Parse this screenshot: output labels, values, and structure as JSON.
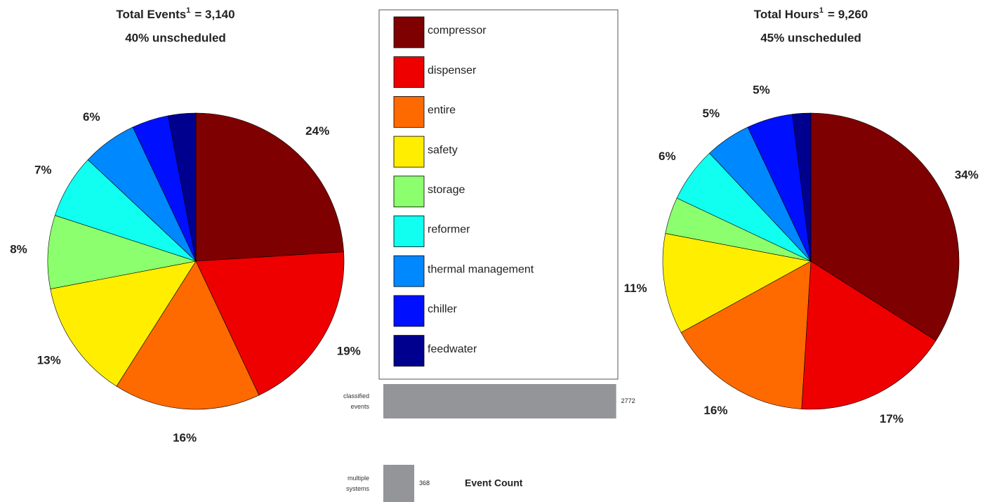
{
  "chart_data": [
    {
      "type": "pie",
      "title": "Total Events",
      "title_footnote": "1",
      "total": "= 3,140",
      "subtitle": "40% unscheduled",
      "categories": [
        "compressor",
        "dispenser",
        "entire",
        "safety",
        "storage",
        "reformer",
        "thermal management",
        "chiller",
        "feedwater"
      ],
      "colors": [
        "#7f0000",
        "#ee0000",
        "#ff6a00",
        "#ffee00",
        "#8cff6e",
        "#10fff0",
        "#0088ff",
        "#0010ff",
        "#00008f"
      ],
      "values": [
        24,
        19,
        16,
        13,
        8,
        7,
        6,
        4,
        3
      ],
      "value_labels": [
        "24%",
        "19%",
        "16%",
        "13%",
        "8%",
        "7%",
        "6%",
        null,
        null
      ],
      "legend": true
    },
    {
      "type": "pie",
      "title": "Total Hours",
      "title_footnote": "1",
      "total": "= 9,260",
      "subtitle": "45% unscheduled",
      "categories": [
        "compressor",
        "dispenser",
        "entire",
        "safety",
        "storage",
        "reformer",
        "thermal management",
        "chiller",
        "feedwater"
      ],
      "colors": [
        "#7f0000",
        "#ee0000",
        "#ff6a00",
        "#ffee00",
        "#8cff6e",
        "#10fff0",
        "#0088ff",
        "#0010ff",
        "#00008f"
      ],
      "values": [
        34,
        17,
        16,
        11,
        4,
        6,
        5,
        5,
        2
      ],
      "value_labels": [
        "34%",
        "17%",
        "16%",
        "11%",
        null,
        "6%",
        "5%",
        "5%",
        null
      ]
    },
    {
      "type": "bar",
      "orientation": "horizontal",
      "title": "Event Count",
      "categories": [
        "classified events",
        "multiple systems"
      ],
      "values": [
        2772,
        368
      ],
      "color": "#939598",
      "xlim": [
        0,
        2800
      ]
    }
  ]
}
